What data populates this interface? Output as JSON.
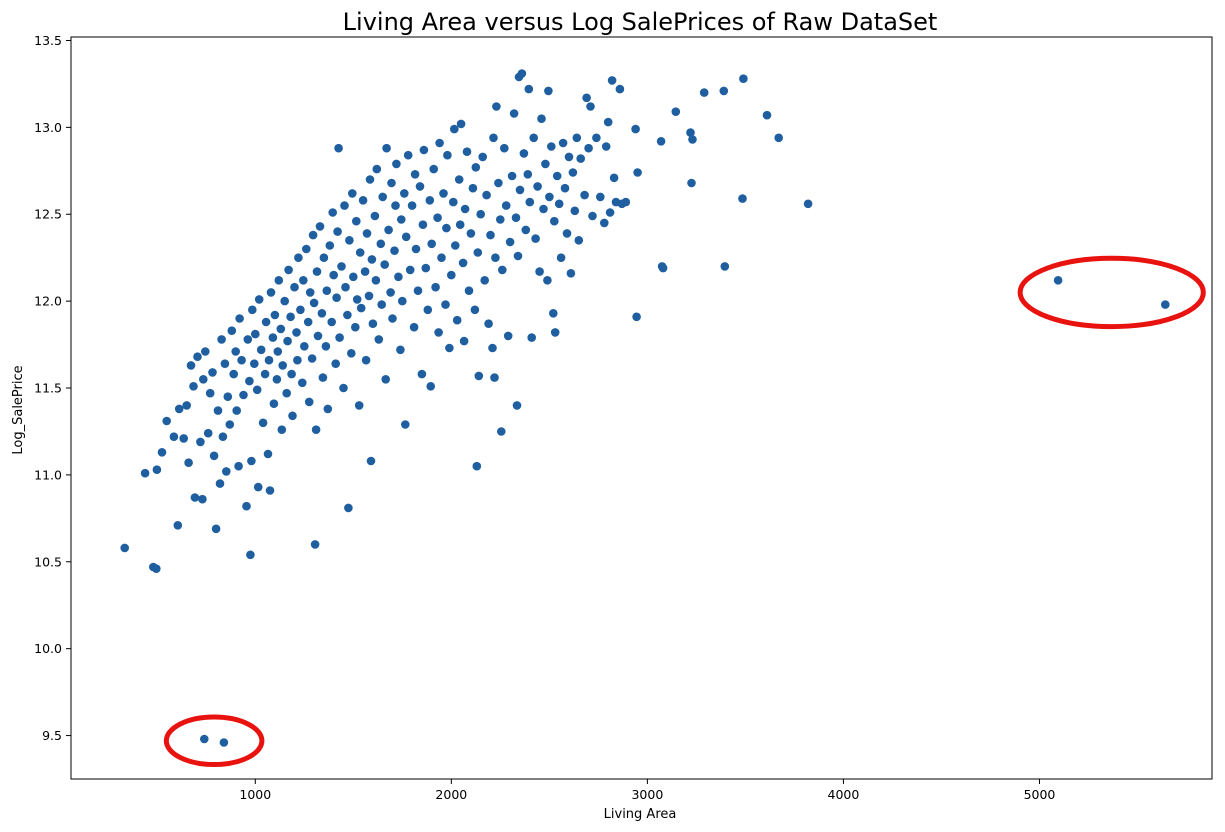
{
  "chart_data": {
    "type": "scatter",
    "title": "Living Area versus Log SalePrices of Raw DataSet",
    "xlabel": "Living Area",
    "ylabel": "Log_SalePrice",
    "xlim": [
      60,
      5880
    ],
    "ylim": [
      9.25,
      13.52
    ],
    "x_ticks": [
      1000,
      2000,
      3000,
      4000,
      5000
    ],
    "x_tick_labels": [
      "1000",
      "2000",
      "3000",
      "4000",
      "5000"
    ],
    "y_ticks": [
      9.5,
      10.0,
      10.5,
      11.0,
      11.5,
      12.0,
      12.5,
      13.0,
      13.5
    ],
    "y_tick_labels": [
      "9.5",
      "10.0",
      "10.5",
      "11.0",
      "11.5",
      "12.0",
      "12.5",
      "13.0",
      "13.5"
    ],
    "grid": false,
    "legend": "none",
    "marker_color": "#1f5fa0",
    "highlight_color": "#e8120f",
    "highlighted_outliers": [
      {
        "points": [
          [
            740,
            9.48
          ],
          [
            840,
            9.46
          ]
        ]
      },
      {
        "points": [
          [
            5095,
            12.12
          ],
          [
            5642,
            11.98
          ]
        ]
      }
    ],
    "points": [
      [
        334,
        10.58
      ],
      [
        480,
        10.47
      ],
      [
        495,
        10.46
      ],
      [
        438,
        11.01
      ],
      [
        498,
        11.03
      ],
      [
        524,
        11.13
      ],
      [
        548,
        11.31
      ],
      [
        585,
        11.22
      ],
      [
        605,
        10.71
      ],
      [
        612,
        11.38
      ],
      [
        635,
        11.21
      ],
      [
        650,
        11.4
      ],
      [
        660,
        11.07
      ],
      [
        672,
        11.63
      ],
      [
        685,
        11.51
      ],
      [
        692,
        10.87
      ],
      [
        705,
        11.68
      ],
      [
        720,
        11.19
      ],
      [
        730,
        10.86
      ],
      [
        735,
        11.55
      ],
      [
        745,
        11.71
      ],
      [
        760,
        11.24
      ],
      [
        770,
        11.47
      ],
      [
        782,
        11.59
      ],
      [
        790,
        11.11
      ],
      [
        800,
        10.69
      ],
      [
        810,
        11.37
      ],
      [
        820,
        10.95
      ],
      [
        828,
        11.78
      ],
      [
        835,
        11.22
      ],
      [
        845,
        11.64
      ],
      [
        852,
        11.02
      ],
      [
        860,
        11.45
      ],
      [
        870,
        11.29
      ],
      [
        880,
        11.83
      ],
      [
        890,
        11.58
      ],
      [
        900,
        11.71
      ],
      [
        905,
        11.37
      ],
      [
        915,
        11.05
      ],
      [
        920,
        11.9
      ],
      [
        930,
        11.66
      ],
      [
        940,
        11.46
      ],
      [
        955,
        10.82
      ],
      [
        962,
        11.78
      ],
      [
        970,
        11.54
      ],
      [
        975,
        10.54
      ],
      [
        980,
        11.08
      ],
      [
        985,
        11.95
      ],
      [
        995,
        11.64
      ],
      [
        1000,
        11.81
      ],
      [
        1010,
        11.49
      ],
      [
        1015,
        10.93
      ],
      [
        1020,
        12.01
      ],
      [
        1030,
        11.72
      ],
      [
        1040,
        11.3
      ],
      [
        1050,
        11.58
      ],
      [
        1055,
        11.88
      ],
      [
        1065,
        11.12
      ],
      [
        1070,
        11.66
      ],
      [
        1075,
        10.91
      ],
      [
        1080,
        12.05
      ],
      [
        1090,
        11.79
      ],
      [
        1095,
        11.41
      ],
      [
        1100,
        11.92
      ],
      [
        1110,
        11.55
      ],
      [
        1115,
        11.71
      ],
      [
        1120,
        12.12
      ],
      [
        1130,
        11.84
      ],
      [
        1135,
        11.26
      ],
      [
        1140,
        11.63
      ],
      [
        1150,
        12.0
      ],
      [
        1160,
        11.47
      ],
      [
        1165,
        11.77
      ],
      [
        1170,
        12.18
      ],
      [
        1180,
        11.91
      ],
      [
        1185,
        11.58
      ],
      [
        1190,
        11.34
      ],
      [
        1200,
        12.08
      ],
      [
        1210,
        11.82
      ],
      [
        1215,
        11.66
      ],
      [
        1220,
        12.25
      ],
      [
        1230,
        11.95
      ],
      [
        1240,
        11.53
      ],
      [
        1245,
        12.12
      ],
      [
        1250,
        11.74
      ],
      [
        1260,
        12.3
      ],
      [
        1270,
        11.88
      ],
      [
        1275,
        11.42
      ],
      [
        1280,
        12.05
      ],
      [
        1290,
        11.67
      ],
      [
        1295,
        12.38
      ],
      [
        1300,
        11.99
      ],
      [
        1305,
        10.6
      ],
      [
        1310,
        11.26
      ],
      [
        1315,
        12.17
      ],
      [
        1320,
        11.8
      ],
      [
        1330,
        12.43
      ],
      [
        1340,
        11.93
      ],
      [
        1345,
        11.56
      ],
      [
        1350,
        12.25
      ],
      [
        1360,
        11.74
      ],
      [
        1365,
        12.06
      ],
      [
        1370,
        11.38
      ],
      [
        1380,
        12.32
      ],
      [
        1390,
        11.88
      ],
      [
        1395,
        12.51
      ],
      [
        1400,
        12.15
      ],
      [
        1410,
        11.64
      ],
      [
        1415,
        12.02
      ],
      [
        1420,
        12.4
      ],
      [
        1425,
        12.88
      ],
      [
        1430,
        11.79
      ],
      [
        1440,
        12.2
      ],
      [
        1450,
        11.5
      ],
      [
        1455,
        12.55
      ],
      [
        1460,
        12.08
      ],
      [
        1470,
        11.92
      ],
      [
        1475,
        10.81
      ],
      [
        1480,
        12.35
      ],
      [
        1490,
        11.7
      ],
      [
        1495,
        12.62
      ],
      [
        1500,
        12.14
      ],
      [
        1510,
        11.85
      ],
      [
        1515,
        12.46
      ],
      [
        1520,
        12.01
      ],
      [
        1530,
        11.4
      ],
      [
        1535,
        12.28
      ],
      [
        1540,
        11.96
      ],
      [
        1550,
        12.58
      ],
      [
        1560,
        12.17
      ],
      [
        1565,
        11.66
      ],
      [
        1570,
        12.39
      ],
      [
        1580,
        12.03
      ],
      [
        1585,
        12.7
      ],
      [
        1590,
        11.08
      ],
      [
        1595,
        12.24
      ],
      [
        1600,
        11.87
      ],
      [
        1610,
        12.49
      ],
      [
        1615,
        12.12
      ],
      [
        1620,
        12.76
      ],
      [
        1630,
        11.78
      ],
      [
        1640,
        12.33
      ],
      [
        1645,
        11.98
      ],
      [
        1650,
        12.6
      ],
      [
        1660,
        12.21
      ],
      [
        1665,
        11.55
      ],
      [
        1670,
        12.88
      ],
      [
        1680,
        12.41
      ],
      [
        1690,
        12.05
      ],
      [
        1695,
        12.68
      ],
      [
        1700,
        11.9
      ],
      [
        1710,
        12.29
      ],
      [
        1715,
        12.55
      ],
      [
        1720,
        12.79
      ],
      [
        1730,
        12.14
      ],
      [
        1740,
        11.72
      ],
      [
        1745,
        12.47
      ],
      [
        1750,
        12.0
      ],
      [
        1760,
        12.62
      ],
      [
        1765,
        11.29
      ],
      [
        1770,
        12.37
      ],
      [
        1780,
        12.84
      ],
      [
        1790,
        12.18
      ],
      [
        1800,
        12.55
      ],
      [
        1810,
        11.85
      ],
      [
        1815,
        12.73
      ],
      [
        1820,
        12.3
      ],
      [
        1830,
        12.06
      ],
      [
        1840,
        12.66
      ],
      [
        1850,
        11.58
      ],
      [
        1855,
        12.44
      ],
      [
        1860,
        12.87
      ],
      [
        1870,
        12.19
      ],
      [
        1880,
        11.95
      ],
      [
        1890,
        12.58
      ],
      [
        1895,
        11.51
      ],
      [
        1900,
        12.33
      ],
      [
        1910,
        12.76
      ],
      [
        1920,
        12.08
      ],
      [
        1930,
        12.48
      ],
      [
        1935,
        11.82
      ],
      [
        1940,
        12.91
      ],
      [
        1950,
        12.25
      ],
      [
        1960,
        12.62
      ],
      [
        1970,
        11.98
      ],
      [
        1975,
        12.42
      ],
      [
        1980,
        12.84
      ],
      [
        1990,
        11.73
      ],
      [
        2000,
        12.15
      ],
      [
        2010,
        12.57
      ],
      [
        2015,
        12.99
      ],
      [
        2020,
        12.32
      ],
      [
        2030,
        11.89
      ],
      [
        2040,
        12.7
      ],
      [
        2045,
        12.44
      ],
      [
        2050,
        13.02
      ],
      [
        2060,
        12.22
      ],
      [
        2065,
        11.77
      ],
      [
        2070,
        12.53
      ],
      [
        2080,
        12.86
      ],
      [
        2090,
        12.06
      ],
      [
        2100,
        12.39
      ],
      [
        2110,
        12.65
      ],
      [
        2120,
        11.95
      ],
      [
        2125,
        12.77
      ],
      [
        2130,
        11.05
      ],
      [
        2135,
        12.28
      ],
      [
        2140,
        11.57
      ],
      [
        2150,
        12.5
      ],
      [
        2160,
        12.83
      ],
      [
        2170,
        12.12
      ],
      [
        2180,
        12.61
      ],
      [
        2190,
        11.87
      ],
      [
        2200,
        12.38
      ],
      [
        2210,
        11.73
      ],
      [
        2215,
        12.94
      ],
      [
        2220,
        11.56
      ],
      [
        2225,
        12.25
      ],
      [
        2230,
        13.12
      ],
      [
        2240,
        12.68
      ],
      [
        2250,
        12.47
      ],
      [
        2255,
        11.25
      ],
      [
        2260,
        12.18
      ],
      [
        2270,
        12.88
      ],
      [
        2280,
        12.55
      ],
      [
        2290,
        11.8
      ],
      [
        2300,
        12.34
      ],
      [
        2310,
        12.72
      ],
      [
        2320,
        13.08
      ],
      [
        2330,
        12.48
      ],
      [
        2335,
        11.4
      ],
      [
        2340,
        12.26
      ],
      [
        2345,
        13.29
      ],
      [
        2350,
        12.64
      ],
      [
        2360,
        13.31
      ],
      [
        2370,
        12.85
      ],
      [
        2380,
        12.41
      ],
      [
        2390,
        12.73
      ],
      [
        2395,
        13.22
      ],
      [
        2400,
        12.57
      ],
      [
        2410,
        11.79
      ],
      [
        2420,
        12.94
      ],
      [
        2430,
        12.36
      ],
      [
        2440,
        12.66
      ],
      [
        2450,
        12.17
      ],
      [
        2460,
        13.05
      ],
      [
        2470,
        12.53
      ],
      [
        2480,
        12.79
      ],
      [
        2490,
        12.12
      ],
      [
        2495,
        13.21
      ],
      [
        2500,
        12.6
      ],
      [
        2510,
        12.89
      ],
      [
        2520,
        11.93
      ],
      [
        2525,
        12.46
      ],
      [
        2530,
        11.82
      ],
      [
        2540,
        12.72
      ],
      [
        2550,
        12.56
      ],
      [
        2560,
        12.25
      ],
      [
        2570,
        12.91
      ],
      [
        2580,
        12.65
      ],
      [
        2590,
        12.39
      ],
      [
        2600,
        12.83
      ],
      [
        2610,
        12.16
      ],
      [
        2620,
        12.74
      ],
      [
        2630,
        12.52
      ],
      [
        2640,
        12.94
      ],
      [
        2650,
        12.35
      ],
      [
        2660,
        12.82
      ],
      [
        2680,
        12.61
      ],
      [
        2690,
        13.17
      ],
      [
        2700,
        12.88
      ],
      [
        2710,
        13.12
      ],
      [
        2720,
        12.49
      ],
      [
        2740,
        12.94
      ],
      [
        2760,
        12.6
      ],
      [
        2780,
        12.45
      ],
      [
        2790,
        12.89
      ],
      [
        2800,
        13.03
      ],
      [
        2810,
        12.51
      ],
      [
        2820,
        13.27
      ],
      [
        2830,
        12.71
      ],
      [
        2840,
        12.57
      ],
      [
        2860,
        13.22
      ],
      [
        2870,
        12.56
      ],
      [
        2890,
        12.57
      ],
      [
        2940,
        12.99
      ],
      [
        2945,
        11.91
      ],
      [
        2950,
        12.74
      ],
      [
        3070,
        12.92
      ],
      [
        3075,
        12.2
      ],
      [
        3080,
        12.19
      ],
      [
        3145,
        13.09
      ],
      [
        3220,
        12.97
      ],
      [
        3230,
        12.93
      ],
      [
        3225,
        12.68
      ],
      [
        3290,
        13.2
      ],
      [
        3390,
        13.21
      ],
      [
        3395,
        12.2
      ],
      [
        3490,
        13.28
      ],
      [
        3485,
        12.59
      ],
      [
        3610,
        13.07
      ],
      [
        3670,
        12.94
      ],
      [
        3820,
        12.56
      ],
      [
        740,
        9.48
      ],
      [
        840,
        9.46
      ],
      [
        5095,
        12.12
      ],
      [
        5642,
        11.98
      ]
    ]
  }
}
